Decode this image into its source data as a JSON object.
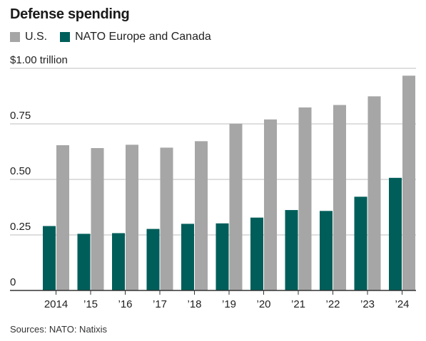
{
  "title": "Defense spending",
  "source": "Sources: NATO: Natixis",
  "colors": {
    "us": "#a6a6a6",
    "nato": "#005e5a",
    "grid": "#bdbdbd",
    "axis": "#333333"
  },
  "chart_data": {
    "type": "bar",
    "categories": [
      "2014",
      "’15",
      "’16",
      "’17",
      "’18",
      "’19",
      "’20",
      "’21",
      "’22",
      "’23",
      "’24"
    ],
    "series": [
      {
        "name": "U.S.",
        "values": [
          0.654,
          0.641,
          0.656,
          0.643,
          0.672,
          0.751,
          0.77,
          0.824,
          0.835,
          0.874,
          0.967
        ]
      },
      {
        "name": "NATO Europe and Canada",
        "values": [
          0.29,
          0.255,
          0.258,
          0.277,
          0.3,
          0.302,
          0.328,
          0.362,
          0.358,
          0.422,
          0.507
        ]
      }
    ],
    "ylim": [
      0,
      1.0
    ],
    "yticks": [
      0,
      0.25,
      0.5,
      0.75,
      1.0
    ],
    "ytick_labels": [
      "0",
      "0.25",
      "0.50",
      "0.75",
      "$1.00 trillion"
    ],
    "grid": true,
    "legend": "top-left"
  }
}
